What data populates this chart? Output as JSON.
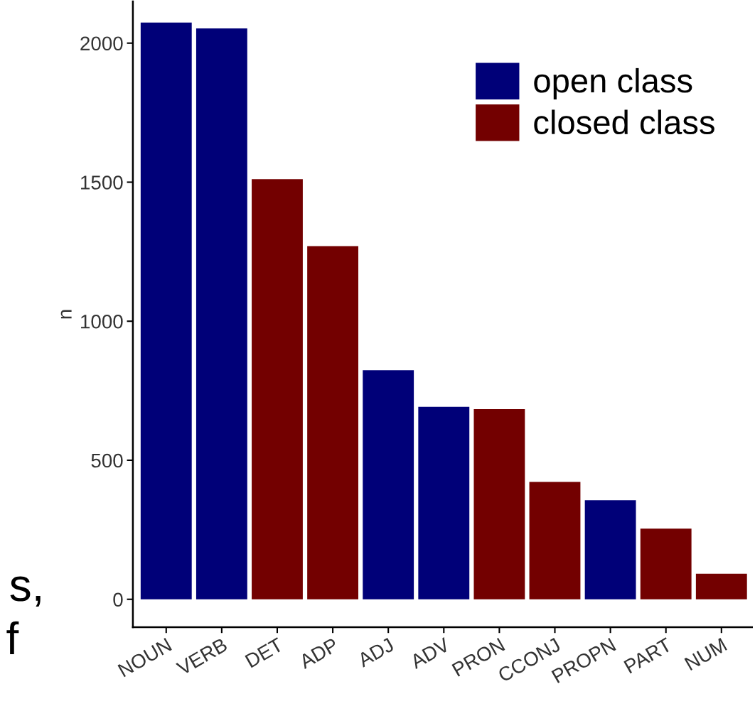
{
  "chart_data": {
    "type": "bar",
    "ylabel": "n",
    "categories": [
      "NOUN",
      "VERB",
      "DET",
      "ADP",
      "ADJ",
      "ADV",
      "PRON",
      "CCONJ",
      "PROPN",
      "PART",
      "NUM"
    ],
    "series": [
      {
        "name": "open class",
        "color": "#000078",
        "values": [
          2074,
          2053,
          null,
          null,
          824,
          692,
          null,
          null,
          356,
          null,
          null
        ]
      },
      {
        "name": "closed class",
        "color": "#730000",
        "values": [
          null,
          null,
          1511,
          1270,
          null,
          null,
          684,
          422,
          null,
          254,
          92
        ]
      }
    ],
    "ylim": [
      -100,
      2150
    ],
    "yticks": [
      0,
      500,
      1000,
      1500,
      2000
    ],
    "grid": false,
    "legend": "top right",
    "annotations": [
      "s,",
      "f"
    ]
  }
}
